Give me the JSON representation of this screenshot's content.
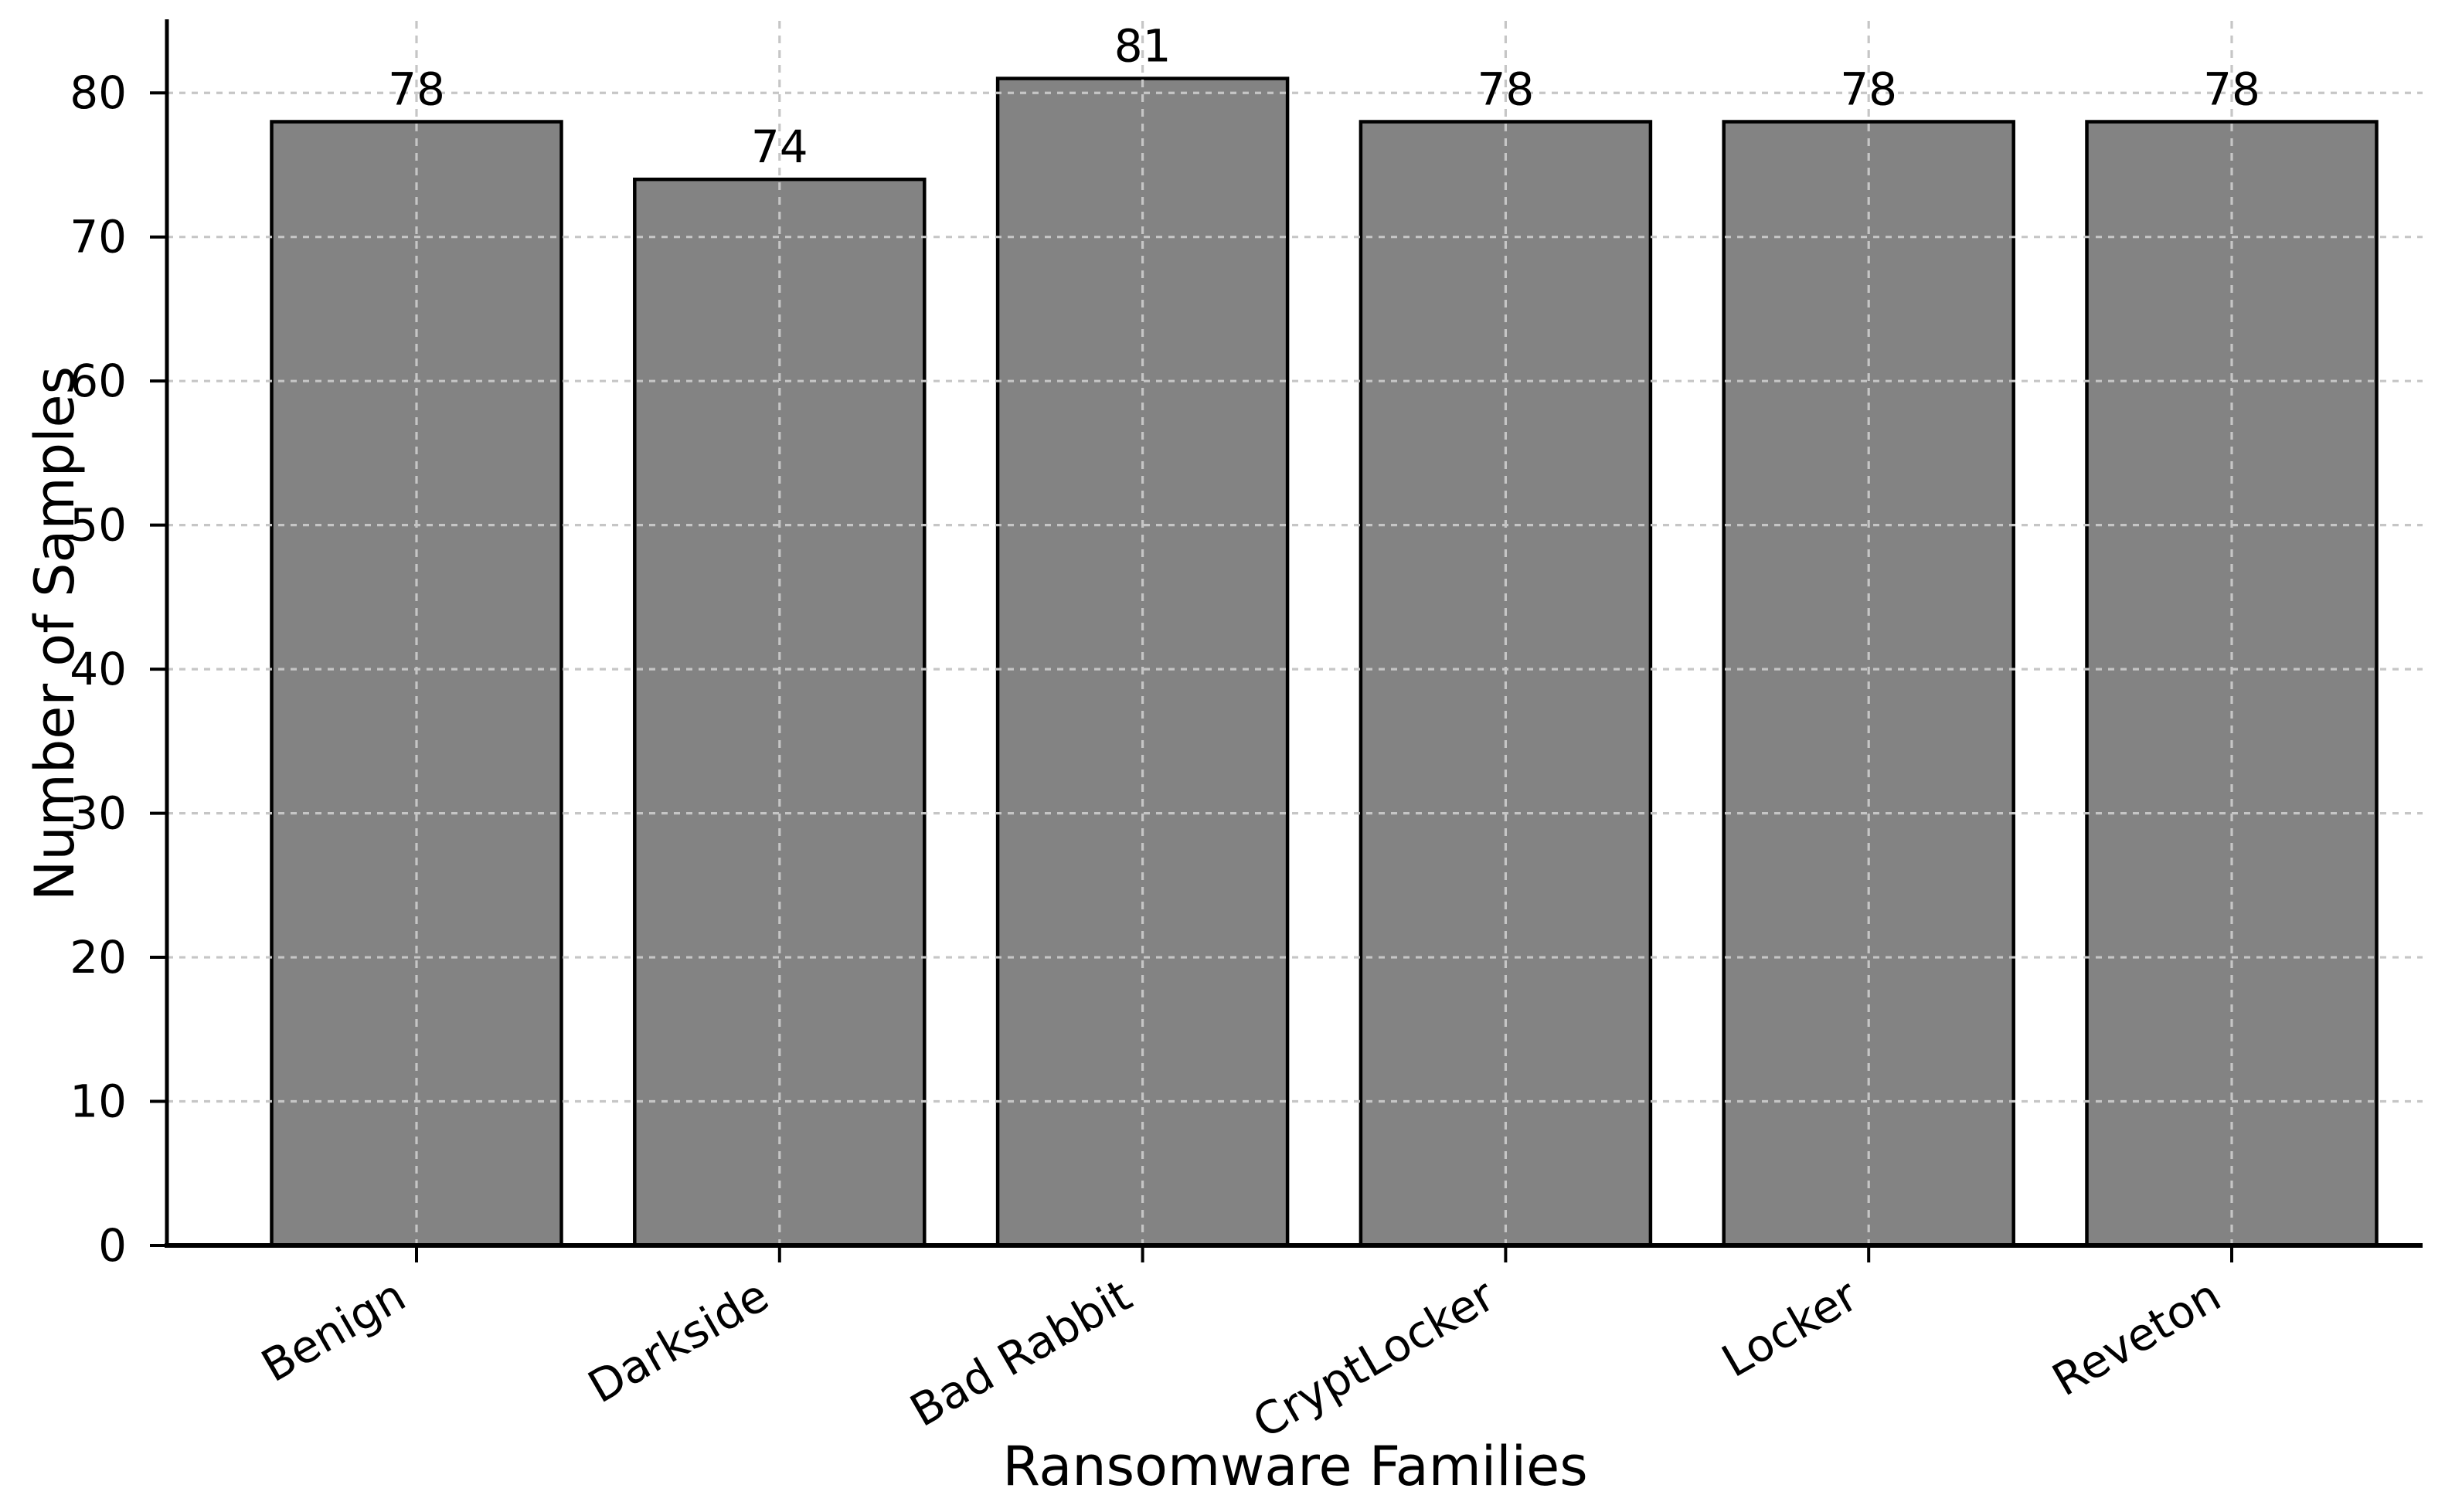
{
  "chart_data": {
    "type": "bar",
    "title": "",
    "xlabel": "Ransomware Families",
    "ylabel": "Number of Samples",
    "categories": [
      "Benign",
      "Darkside",
      "Bad Rabbit",
      "CryptLocker",
      "Locker",
      "Reveton"
    ],
    "values": [
      78,
      74,
      81,
      78,
      78,
      78
    ],
    "value_labels": [
      "78",
      "74",
      "81",
      "78",
      "78",
      "78"
    ],
    "ylim": [
      0,
      85
    ],
    "yticks": [
      0,
      10,
      20,
      30,
      40,
      50,
      60,
      70,
      80
    ],
    "x_tick_rotation_deg": 30,
    "legend": "none",
    "grid": {
      "visible": true,
      "style": "dashed",
      "axes": "both",
      "drawn_above_bars": true
    },
    "colors": {
      "bar_fill": "#838383",
      "bar_edge": "#000000",
      "grid_line": "#c6c6c6",
      "axis_line": "#000000",
      "text": "#000000",
      "background": "#ffffff"
    }
  }
}
